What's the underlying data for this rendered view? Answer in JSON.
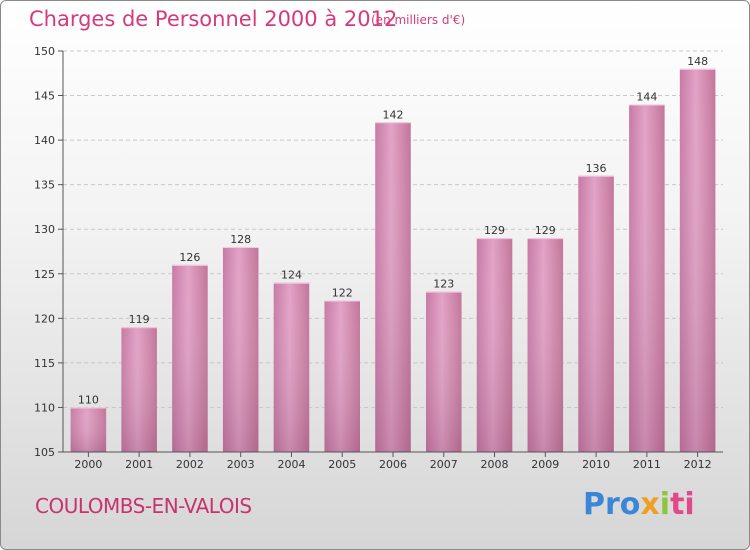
{
  "title": "Charges de Personnel 2000 à 2012",
  "unit_note": "(en milliers d'€)",
  "commune": "COULOMBS-EN-VALOIS",
  "logo": {
    "p1": "Pro",
    "p2": "x",
    "p3": "i",
    "p4": "ti"
  },
  "colors": {
    "bar": "#d787b2",
    "bar_dark": "#b86a96",
    "title": "#d63a7c"
  },
  "chart_data": {
    "type": "bar",
    "title": "Charges de Personnel 2000 à 2012",
    "xlabel": "",
    "ylabel": "",
    "categories": [
      "2000",
      "2001",
      "2002",
      "2003",
      "2004",
      "2005",
      "2006",
      "2007",
      "2008",
      "2009",
      "2010",
      "2011",
      "2012"
    ],
    "values": [
      110,
      119,
      126,
      128,
      124,
      122,
      142,
      123,
      129,
      129,
      136,
      144,
      148
    ],
    "ylim": [
      105,
      150
    ],
    "yticks": [
      105,
      110,
      115,
      120,
      125,
      130,
      135,
      140,
      145,
      150
    ],
    "grid": true,
    "data_labels": true
  }
}
